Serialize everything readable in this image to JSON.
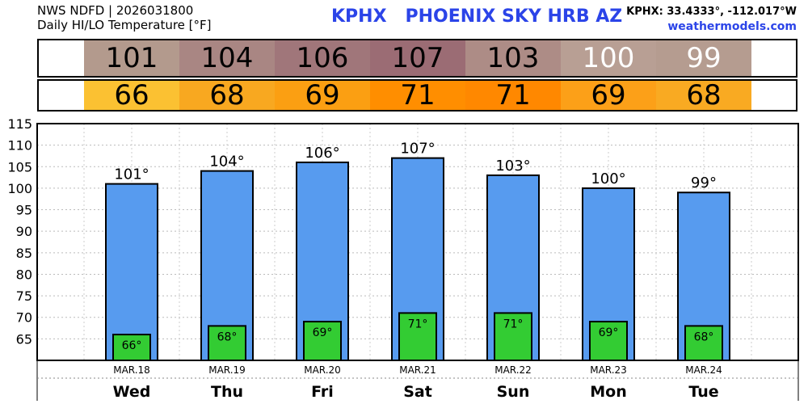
{
  "header": {
    "line1": "NWS NDFD | 2026031800",
    "line2": "Daily HI/LO Temperature [°F]",
    "title": "KPHX   PHOENIX SKY HRB AZ",
    "coords": "KPHX: 33.4333°, -112.017°W",
    "site": "weathermodels.com"
  },
  "hi_strip": [
    {
      "value": "101",
      "color": "#b39a8d",
      "text_color": "#000000"
    },
    {
      "value": "104",
      "color": "#a98683",
      "text_color": "#000000"
    },
    {
      "value": "106",
      "color": "#a0767a",
      "text_color": "#000000"
    },
    {
      "value": "107",
      "color": "#9b6c74",
      "text_color": "#000000"
    },
    {
      "value": "103",
      "color": "#ad8c86",
      "text_color": "#000000"
    },
    {
      "value": "100",
      "color": "#b89f94",
      "text_color": "#ffffff"
    },
    {
      "value": "99",
      "color": "#b59c90",
      "text_color": "#ffffff"
    }
  ],
  "lo_strip": [
    {
      "value": "66",
      "color": "#fbc132",
      "text_color": "#000000"
    },
    {
      "value": "68",
      "color": "#f8a820",
      "text_color": "#000000"
    },
    {
      "value": "69",
      "color": "#fb9f12",
      "text_color": "#000000"
    },
    {
      "value": "71",
      "color": "#ff8e00",
      "text_color": "#000000"
    },
    {
      "value": "71",
      "color": "#ff8800",
      "text_color": "#000000"
    },
    {
      "value": "69",
      "color": "#fca018",
      "text_color": "#000000"
    },
    {
      "value": "68",
      "color": "#f9aa22",
      "text_color": "#000000"
    }
  ],
  "chart_data": {
    "type": "bar",
    "title": "",
    "xlabel": "",
    "ylabel": "",
    "ylim": [
      60,
      115
    ],
    "yticks": [
      65,
      70,
      75,
      80,
      85,
      90,
      95,
      100,
      105,
      110,
      115
    ],
    "grid": true,
    "categories": [
      "Wed",
      "Thu",
      "Fri",
      "Sat",
      "Sun",
      "Mon",
      "Tue"
    ],
    "dates": [
      "MAR.18",
      "MAR.19",
      "MAR.20",
      "MAR.21",
      "MAR.22",
      "MAR.23",
      "MAR.24"
    ],
    "series": [
      {
        "values": [
          101,
          104,
          106,
          107,
          103,
          100,
          99
        ],
        "color": "#579bef"
      },
      {
        "values": [
          66,
          68,
          69,
          71,
          71,
          69,
          68
        ],
        "color": "#33cc33"
      }
    ],
    "hi_labels": [
      "101°",
      "104°",
      "106°",
      "107°",
      "103°",
      "100°",
      "99°"
    ],
    "lo_labels": [
      "66°",
      "68°",
      "69°",
      "71°",
      "71°",
      "69°",
      "68°"
    ]
  }
}
